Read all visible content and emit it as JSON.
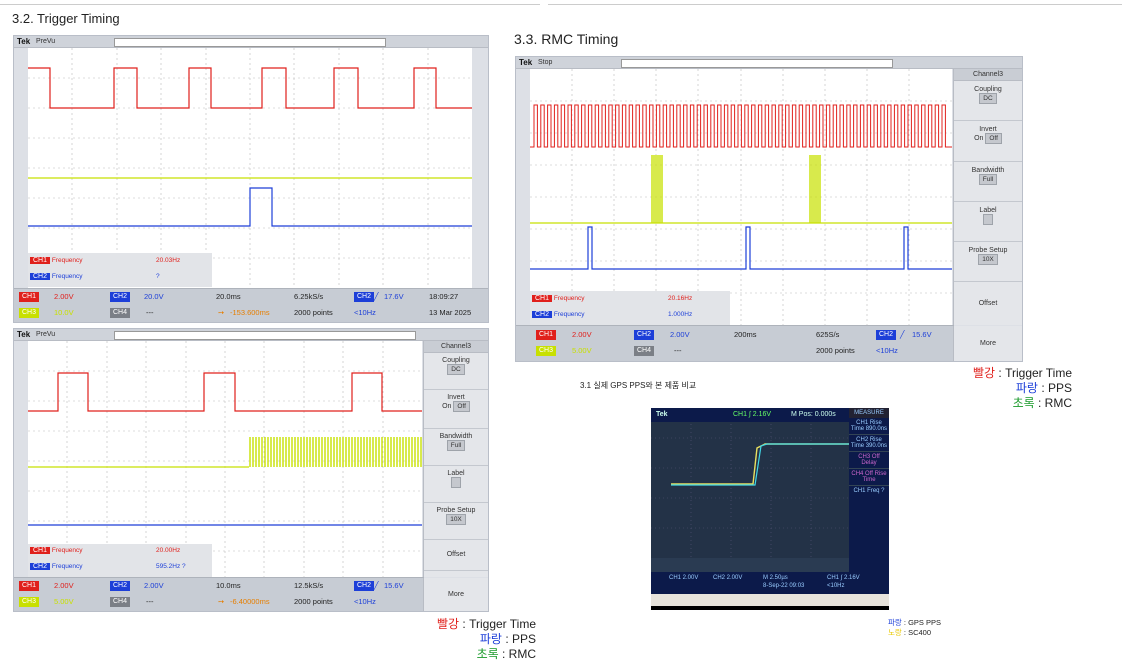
{
  "sections": {
    "trigger_timing": "3.2. Trigger Timing",
    "rmc_timing": "3.3. RMC Timing"
  },
  "photo_caption": "3.1 실제 GPS PPS와 본 제품 비교",
  "legend_left": {
    "red_word": "빨강",
    "red_text": " : Trigger Time",
    "blue_word": "파랑",
    "blue_text": " : PPS",
    "green_word": "초록",
    "green_text": " : RMC"
  },
  "legend_right": {
    "red_word": "빨강",
    "red_text": " : Trigger Time",
    "blue_word": "파랑",
    "blue_text": " : PPS",
    "green_word": "초록",
    "green_text": " : RMC"
  },
  "legend_photo": {
    "blue_word": "파랑",
    "blue_text": " : GPS PPS",
    "yellow_word": "노랑",
    "yellow_text": " : SC400"
  },
  "scope1": {
    "brand": "Tek",
    "mode": "PreVu",
    "measure": [
      {
        "ch": "CH1",
        "label": "Frequency",
        "value": "20.03Hz"
      },
      {
        "ch": "CH2",
        "label": "Frequency",
        "value": "?"
      }
    ],
    "ch1": "CH1",
    "ch1v": "2.00V",
    "ch2": "CH2",
    "ch2v": "20.0V",
    "ch3": "CH3",
    "ch3v": "10.0V",
    "ch4": "CH4",
    "ch4v": "---",
    "timebase": "20.0ms",
    "pos": "-153.600ms",
    "rate": "6.25kS/s",
    "points": "2000 points",
    "trig_ch": "CH2",
    "trig_v": "17.6V",
    "trig_bw": "<10Hz",
    "time": "18:09:27",
    "date": "13 Mar 2025"
  },
  "scope2": {
    "brand": "Tek",
    "mode": "PreVu",
    "measure": [
      {
        "ch": "CH1",
        "label": "Frequency",
        "value": "20.00Hz"
      },
      {
        "ch": "CH2",
        "label": "Frequency",
        "value": "595.2Hz ?"
      }
    ],
    "ch1": "CH1",
    "ch1v": "2.00V",
    "ch2": "CH2",
    "ch2v": "2.00V",
    "ch3": "CH3",
    "ch3v": "5.00V",
    "ch4": "CH4",
    "ch4v": "---",
    "timebase": "10.0ms",
    "pos": "-6.40000ms",
    "rate": "12.5kS/s",
    "points": "2000 points",
    "trig_ch": "CH2",
    "trig_v": "15.6V",
    "trig_bw": "<10Hz",
    "panel": {
      "header": "Channel3",
      "coupling": "Coupling",
      "coupling_val": "DC",
      "invert": "Invert",
      "on": "On",
      "off": "Off",
      "bandwidth": "Bandwidth",
      "bw_val": "Full",
      "label": "Label",
      "probe": "Probe Setup",
      "probe_val": "10X",
      "offset": "Offset",
      "more": "More"
    }
  },
  "scope3": {
    "brand": "Tek",
    "mode": "Stop",
    "measure": [
      {
        "ch": "CH1",
        "label": "Frequency",
        "value": "20.16Hz"
      },
      {
        "ch": "CH2",
        "label": "Frequency",
        "value": "1.000Hz"
      }
    ],
    "ch1": "CH1",
    "ch1v": "2.00V",
    "ch2": "CH2",
    "ch2v": "2.00V",
    "ch3": "CH3",
    "ch3v": "5.00V",
    "ch4": "CH4",
    "ch4v": "---",
    "timebase": "200ms",
    "rate": "625S/s",
    "points": "2000 points",
    "trig_ch": "CH2",
    "trig_v": "15.6V",
    "trig_bw": "<10Hz",
    "panel": {
      "header": "Channel3",
      "coupling": "Coupling",
      "coupling_val": "DC",
      "invert": "Invert",
      "on": "On",
      "off": "Off",
      "bandwidth": "Bandwidth",
      "bw_val": "Full",
      "label": "Label",
      "probe": "Probe Setup",
      "probe_val": "10X",
      "offset": "Offset",
      "more": "More"
    }
  },
  "photo": {
    "brand": "Tek",
    "trig": "CH1 ∫ 2.16V",
    "mpos": "M Pos: 0.000s",
    "measure_hdr": "MEASURE",
    "items": [
      "CH1 Rise Time 890.0ns",
      "CH2 Rise Time 390.0ns",
      "CH3 Off Delay",
      "CH4 Off Rise Time",
      "CH1 Freq ?"
    ],
    "ch1": "CH1  2.00V",
    "ch2": "CH2  2.00V",
    "m": "M 2.50µs",
    "date": "8-Sep-22 09:03",
    "bw": "<10Hz"
  }
}
